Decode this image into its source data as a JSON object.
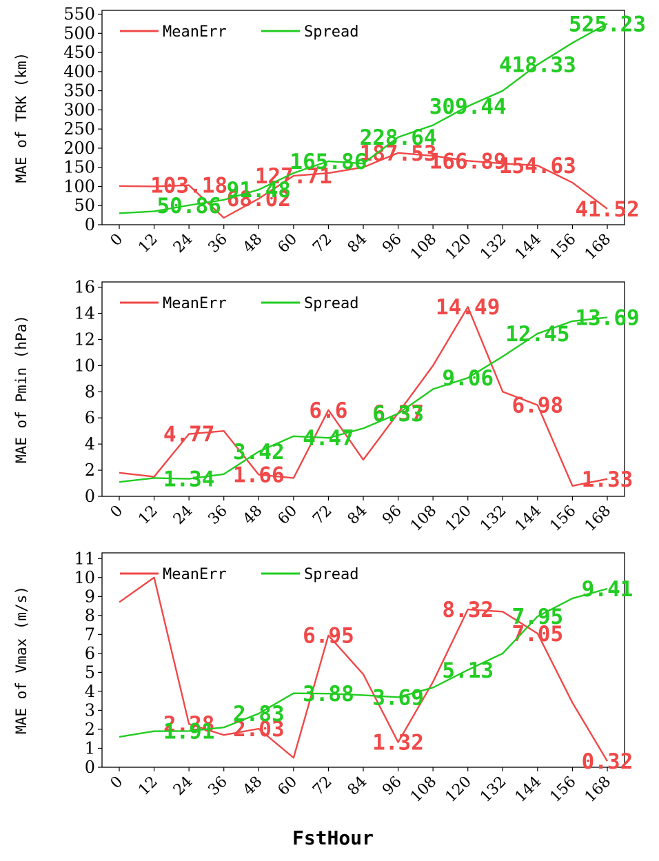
{
  "x_axis_label": "FstHour",
  "colors": {
    "meanerr": "#f04848",
    "spread": "#22cc22"
  },
  "chart_data": [
    {
      "type": "line",
      "ylabel": "MAE of TRK (km)",
      "ylim": [
        0,
        560
      ],
      "yticks": [
        0,
        50,
        100,
        150,
        200,
        250,
        300,
        350,
        400,
        450,
        500,
        550
      ],
      "x": [
        0,
        12,
        24,
        36,
        48,
        60,
        72,
        84,
        96,
        108,
        120,
        132,
        144,
        156,
        168
      ],
      "xticks": [
        "0",
        "12",
        "24",
        "36",
        "48",
        "60",
        "72",
        "84",
        "96",
        "108",
        "120",
        "132",
        "144",
        "156",
        "168"
      ],
      "legend": "top-left",
      "series": [
        {
          "name": "MeanErr",
          "values": [
            101,
            100,
            103.18,
            18,
            68.02,
            127.71,
            135,
            150,
            187.53,
            180,
            166.89,
            160,
            154.63,
            110,
            41.52
          ],
          "labels": [
            null,
            null,
            "103.18",
            null,
            "68.02",
            "127.71",
            null,
            null,
            "187.53",
            null,
            "166.89",
            null,
            "154.63",
            null,
            "41.52"
          ]
        },
        {
          "name": "Spread",
          "values": [
            30,
            35,
            50.86,
            65,
            91.48,
            135,
            165.86,
            160,
            228.64,
            260,
            309.44,
            350,
            418.33,
            475,
            525.23
          ],
          "labels": [
            null,
            null,
            "50.86",
            null,
            "91.48",
            null,
            "165.86",
            null,
            "228.64",
            null,
            "309.44",
            null,
            "418.33",
            null,
            "525.23"
          ]
        }
      ]
    },
    {
      "type": "line",
      "ylabel": "MAE of Pmin (hPa)",
      "ylim": [
        0,
        16.4
      ],
      "yticks": [
        0,
        2,
        4,
        6,
        8,
        10,
        12,
        14,
        16
      ],
      "x": [
        0,
        12,
        24,
        36,
        48,
        60,
        72,
        84,
        96,
        108,
        120,
        132,
        144,
        156,
        168
      ],
      "xticks": [
        "0",
        "12",
        "24",
        "36",
        "48",
        "60",
        "72",
        "84",
        "96",
        "108",
        "120",
        "132",
        "144",
        "156",
        "168"
      ],
      "legend": "top-left",
      "series": [
        {
          "name": "MeanErr",
          "values": [
            1.8,
            1.5,
            4.77,
            5.0,
            1.66,
            1.4,
            6.6,
            2.8,
            6.37,
            10.0,
            14.49,
            8.0,
            6.98,
            0.8,
            1.33
          ],
          "labels": [
            null,
            null,
            "4.77",
            null,
            "1.66",
            null,
            "6.6",
            null,
            "6.37",
            null,
            "14.49",
            null,
            "6.98",
            null,
            "1.33"
          ]
        },
        {
          "name": "Spread",
          "values": [
            1.1,
            1.4,
            1.34,
            1.7,
            3.42,
            4.6,
            4.47,
            5.2,
            6.33,
            8.2,
            9.06,
            10.7,
            12.45,
            13.4,
            13.69
          ],
          "labels": [
            null,
            null,
            "1.34",
            null,
            "3.42",
            null,
            "4.47",
            null,
            "6.33",
            null,
            "9.06",
            null,
            "12.45",
            null,
            "13.69"
          ]
        }
      ]
    },
    {
      "type": "line",
      "ylabel": "MAE of Vmax (m/s)",
      "ylim": [
        0,
        11.3
      ],
      "yticks": [
        0,
        1,
        2,
        3,
        4,
        5,
        6,
        7,
        8,
        9,
        10,
        11
      ],
      "x": [
        0,
        12,
        24,
        36,
        48,
        60,
        72,
        84,
        96,
        108,
        120,
        132,
        144,
        156,
        168
      ],
      "xticks": [
        "0",
        "12",
        "24",
        "36",
        "48",
        "60",
        "72",
        "84",
        "96",
        "108",
        "120",
        "132",
        "144",
        "156",
        "168"
      ],
      "legend": "top-left",
      "series": [
        {
          "name": "MeanErr",
          "values": [
            8.7,
            10.0,
            2.28,
            1.7,
            2.03,
            0.5,
            6.95,
            4.9,
            1.32,
            4.5,
            8.32,
            8.2,
            7.05,
            3.4,
            0.32
          ],
          "labels": [
            null,
            null,
            "2.28",
            null,
            "2.03",
            null,
            "6.95",
            null,
            "1.32",
            null,
            "8.32",
            null,
            "7.05",
            null,
            "0.32"
          ]
        },
        {
          "name": "Spread",
          "values": [
            1.6,
            1.9,
            1.91,
            2.1,
            2.83,
            3.9,
            3.88,
            3.8,
            3.69,
            4.2,
            5.13,
            6.0,
            7.95,
            8.9,
            9.41
          ],
          "labels": [
            null,
            null,
            "1.91",
            null,
            "2.83",
            null,
            "3.88",
            null,
            "3.69",
            null,
            "5.13",
            null,
            "7.95",
            null,
            "9.41"
          ]
        }
      ]
    }
  ]
}
